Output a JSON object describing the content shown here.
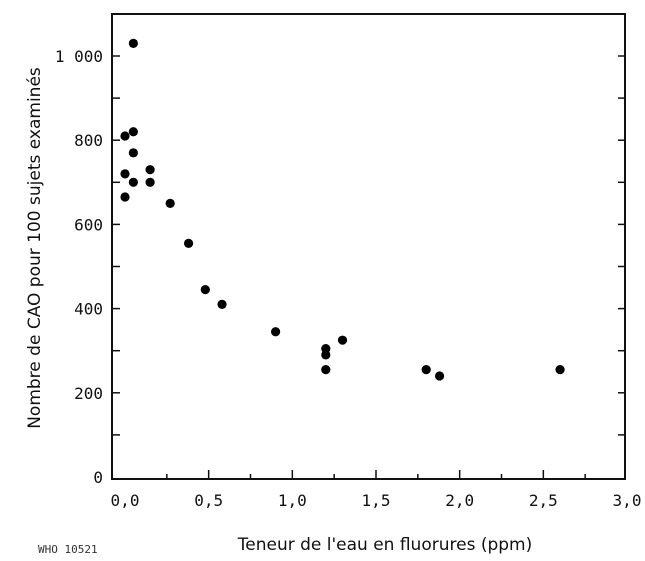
{
  "chart_data": {
    "type": "scatter",
    "title": "",
    "xlabel": "Teneur de l'eau en fluorures (ppm)",
    "ylabel": "Nombre de CAO pour 100 sujets examinés",
    "xlim": [
      0.0,
      3.0
    ],
    "ylim": [
      0,
      1100
    ],
    "x_ticks": [
      0.0,
      0.5,
      1.0,
      1.5,
      2.0,
      2.5,
      3.0
    ],
    "x_tick_labels": [
      "0,0",
      "0,5",
      "1,0",
      "1,5",
      "2,0",
      "2,5",
      "3,0"
    ],
    "y_ticks": [
      0,
      200,
      400,
      600,
      800,
      1000
    ],
    "y_tick_labels": [
      "0",
      "200",
      "400",
      "600",
      "800",
      "1 000"
    ],
    "grid": false,
    "series": [
      {
        "points": [
          {
            "x": 0.0,
            "y": 810
          },
          {
            "x": 0.0,
            "y": 720
          },
          {
            "x": 0.0,
            "y": 665
          },
          {
            "x": 0.05,
            "y": 1030
          },
          {
            "x": 0.05,
            "y": 820
          },
          {
            "x": 0.05,
            "y": 770
          },
          {
            "x": 0.05,
            "y": 700
          },
          {
            "x": 0.15,
            "y": 730
          },
          {
            "x": 0.15,
            "y": 700
          },
          {
            "x": 0.27,
            "y": 650
          },
          {
            "x": 0.38,
            "y": 555
          },
          {
            "x": 0.48,
            "y": 445
          },
          {
            "x": 0.58,
            "y": 410
          },
          {
            "x": 0.9,
            "y": 345
          },
          {
            "x": 1.2,
            "y": 305
          },
          {
            "x": 1.2,
            "y": 290
          },
          {
            "x": 1.2,
            "y": 255
          },
          {
            "x": 1.3,
            "y": 325
          },
          {
            "x": 1.8,
            "y": 255
          },
          {
            "x": 1.88,
            "y": 240
          },
          {
            "x": 2.6,
            "y": 255
          }
        ]
      }
    ]
  },
  "figure_ref": "WHO 10521"
}
